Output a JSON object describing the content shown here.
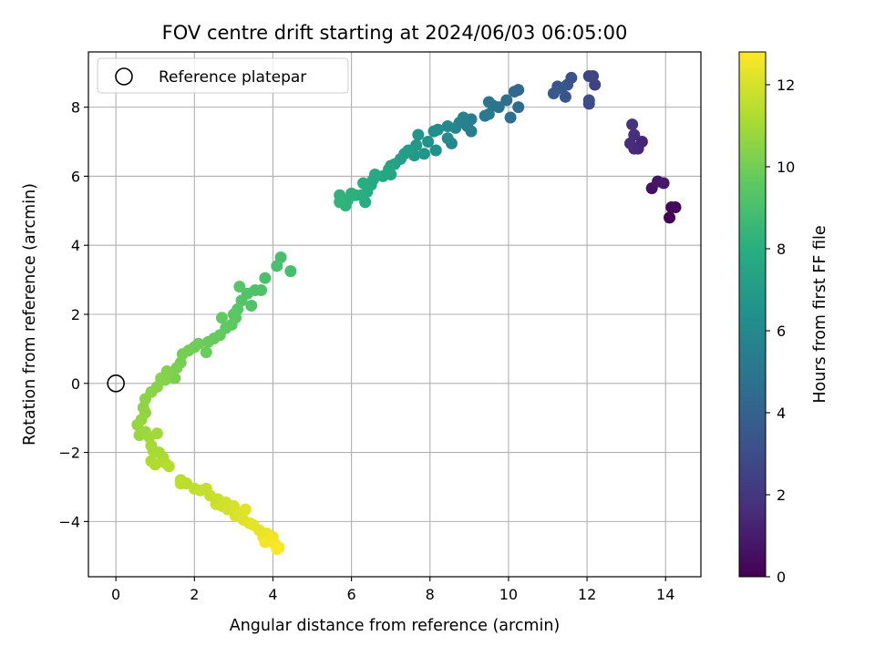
{
  "chart_data": {
    "type": "scatter",
    "title": "FOV centre drift starting at 2024/06/03 06:05:00",
    "xlabel": "Angular distance from reference (arcmin)",
    "ylabel": "Rotation from reference (arcmin)",
    "xlim": [
      -0.7,
      14.9
    ],
    "ylim": [
      -5.6,
      9.6
    ],
    "xticks": [
      0,
      2,
      4,
      6,
      8,
      10,
      12,
      14
    ],
    "yticks": [
      -4,
      -2,
      0,
      2,
      4,
      6,
      8
    ],
    "grid": true,
    "legend": {
      "placement": "top-left",
      "entries": [
        "Reference platepar"
      ]
    },
    "reference_point": {
      "x": 0,
      "y": 0,
      "label": "Reference platepar",
      "marker": "open-circle"
    },
    "colorbar": {
      "label": "Hours from first FF file",
      "colormap": "viridis",
      "range": [
        0,
        12.8
      ],
      "ticks": [
        0,
        2,
        4,
        6,
        8,
        10,
        12
      ]
    },
    "series": [
      {
        "points": [
          {
            "x": 14.1,
            "y": 4.8,
            "t": 0.1
          },
          {
            "x": 14.25,
            "y": 5.1,
            "t": 0.2
          },
          {
            "x": 14.15,
            "y": 5.1,
            "t": 0.3
          },
          {
            "x": 13.65,
            "y": 5.65,
            "t": 0.6
          },
          {
            "x": 13.8,
            "y": 5.85,
            "t": 0.8
          },
          {
            "x": 13.95,
            "y": 5.8,
            "t": 0.9
          },
          {
            "x": 13.4,
            "y": 7.0,
            "t": 1.3
          },
          {
            "x": 13.3,
            "y": 6.8,
            "t": 1.4
          },
          {
            "x": 13.2,
            "y": 6.8,
            "t": 1.5
          },
          {
            "x": 13.1,
            "y": 6.95,
            "t": 1.6
          },
          {
            "x": 13.2,
            "y": 7.2,
            "t": 1.7
          },
          {
            "x": 13.15,
            "y": 7.5,
            "t": 1.8
          },
          {
            "x": 12.2,
            "y": 8.65,
            "t": 2.5
          },
          {
            "x": 12.15,
            "y": 8.9,
            "t": 2.6
          },
          {
            "x": 12.05,
            "y": 8.9,
            "t": 2.7
          },
          {
            "x": 12.05,
            "y": 8.1,
            "t": 2.9
          },
          {
            "x": 12.05,
            "y": 8.2,
            "t": 3.0
          },
          {
            "x": 11.6,
            "y": 8.85,
            "t": 3.1
          },
          {
            "x": 11.5,
            "y": 8.65,
            "t": 3.2
          },
          {
            "x": 11.45,
            "y": 8.3,
            "t": 3.3
          },
          {
            "x": 11.35,
            "y": 8.55,
            "t": 3.4
          },
          {
            "x": 11.25,
            "y": 8.6,
            "t": 3.5
          },
          {
            "x": 11.15,
            "y": 8.4,
            "t": 3.6
          },
          {
            "x": 10.25,
            "y": 8.5,
            "t": 4.3
          },
          {
            "x": 10.15,
            "y": 8.45,
            "t": 4.4
          },
          {
            "x": 10.25,
            "y": 8.0,
            "t": 4.5
          },
          {
            "x": 10.05,
            "y": 7.7,
            "t": 4.6
          },
          {
            "x": 9.95,
            "y": 8.2,
            "t": 4.7
          },
          {
            "x": 9.75,
            "y": 8.0,
            "t": 4.8
          },
          {
            "x": 9.6,
            "y": 8.05,
            "t": 4.9
          },
          {
            "x": 9.5,
            "y": 8.15,
            "t": 5.0
          },
          {
            "x": 9.5,
            "y": 7.8,
            "t": 5.1
          },
          {
            "x": 9.4,
            "y": 7.75,
            "t": 5.2
          },
          {
            "x": 9.05,
            "y": 7.65,
            "t": 5.3
          },
          {
            "x": 9.05,
            "y": 7.3,
            "t": 5.4
          },
          {
            "x": 8.95,
            "y": 7.45,
            "t": 5.5
          },
          {
            "x": 8.85,
            "y": 7.7,
            "t": 5.6
          },
          {
            "x": 8.75,
            "y": 7.55,
            "t": 5.7
          },
          {
            "x": 8.65,
            "y": 7.4,
            "t": 5.8
          },
          {
            "x": 8.55,
            "y": 6.95,
            "t": 5.9
          },
          {
            "x": 8.45,
            "y": 7.45,
            "t": 6.0
          },
          {
            "x": 8.45,
            "y": 7.1,
            "t": 6.1
          },
          {
            "x": 8.2,
            "y": 7.35,
            "t": 6.2
          },
          {
            "x": 8.1,
            "y": 7.3,
            "t": 6.3
          },
          {
            "x": 8.15,
            "y": 6.75,
            "t": 6.4
          },
          {
            "x": 7.95,
            "y": 7.0,
            "t": 6.5
          },
          {
            "x": 7.85,
            "y": 6.65,
            "t": 6.6
          },
          {
            "x": 7.7,
            "y": 7.2,
            "t": 6.7
          },
          {
            "x": 7.65,
            "y": 6.9,
            "t": 6.8
          },
          {
            "x": 7.6,
            "y": 6.6,
            "t": 6.9
          },
          {
            "x": 7.45,
            "y": 6.75,
            "t": 7.0
          },
          {
            "x": 7.35,
            "y": 6.65,
            "t": 7.1
          },
          {
            "x": 7.25,
            "y": 6.5,
            "t": 7.2
          },
          {
            "x": 7.1,
            "y": 6.35,
            "t": 7.3
          },
          {
            "x": 7.0,
            "y": 6.3,
            "t": 7.4
          },
          {
            "x": 7.0,
            "y": 6.05,
            "t": 7.5
          },
          {
            "x": 6.95,
            "y": 6.2,
            "t": 7.55
          },
          {
            "x": 6.8,
            "y": 6.0,
            "t": 7.6
          },
          {
            "x": 6.6,
            "y": 6.05,
            "t": 7.7
          },
          {
            "x": 6.55,
            "y": 5.9,
            "t": 7.75
          },
          {
            "x": 6.5,
            "y": 5.75,
            "t": 7.8
          },
          {
            "x": 6.4,
            "y": 5.55,
            "t": 7.85
          },
          {
            "x": 6.35,
            "y": 5.25,
            "t": 7.9
          },
          {
            "x": 6.3,
            "y": 5.8,
            "t": 7.95
          },
          {
            "x": 6.25,
            "y": 5.45,
            "t": 8.0
          },
          {
            "x": 6.1,
            "y": 5.45,
            "t": 8.05
          },
          {
            "x": 6.0,
            "y": 5.5,
            "t": 8.1
          },
          {
            "x": 5.9,
            "y": 5.3,
            "t": 8.15
          },
          {
            "x": 5.85,
            "y": 5.15,
            "t": 8.2
          },
          {
            "x": 5.7,
            "y": 5.45,
            "t": 8.25
          },
          {
            "x": 5.7,
            "y": 5.25,
            "t": 8.3
          },
          {
            "x": 4.45,
            "y": 3.25,
            "t": 8.9
          },
          {
            "x": 4.2,
            "y": 3.65,
            "t": 8.95
          },
          {
            "x": 4.1,
            "y": 3.4,
            "t": 9.0
          },
          {
            "x": 3.8,
            "y": 3.05,
            "t": 9.05
          },
          {
            "x": 3.7,
            "y": 2.7,
            "t": 9.1
          },
          {
            "x": 3.55,
            "y": 2.7,
            "t": 9.15
          },
          {
            "x": 3.45,
            "y": 2.25,
            "t": 9.2
          },
          {
            "x": 3.35,
            "y": 2.6,
            "t": 9.25
          },
          {
            "x": 3.2,
            "y": 2.4,
            "t": 9.3
          },
          {
            "x": 3.15,
            "y": 2.8,
            "t": 9.35
          },
          {
            "x": 3.1,
            "y": 2.15,
            "t": 9.4
          },
          {
            "x": 3.05,
            "y": 1.9,
            "t": 9.45
          },
          {
            "x": 3.0,
            "y": 2.0,
            "t": 9.5
          },
          {
            "x": 2.95,
            "y": 1.7,
            "t": 9.55
          },
          {
            "x": 2.8,
            "y": 1.6,
            "t": 9.6
          },
          {
            "x": 2.7,
            "y": 1.9,
            "t": 9.65
          },
          {
            "x": 2.65,
            "y": 1.4,
            "t": 9.7
          },
          {
            "x": 2.5,
            "y": 1.3,
            "t": 9.75
          },
          {
            "x": 2.35,
            "y": 1.2,
            "t": 9.8
          },
          {
            "x": 2.3,
            "y": 0.9,
            "t": 9.85
          },
          {
            "x": 2.1,
            "y": 1.15,
            "t": 9.9
          },
          {
            "x": 2.0,
            "y": 1.05,
            "t": 9.95
          },
          {
            "x": 1.85,
            "y": 0.95,
            "t": 10.0
          },
          {
            "x": 1.7,
            "y": 0.85,
            "t": 10.05
          },
          {
            "x": 1.65,
            "y": 0.6,
            "t": 10.1
          },
          {
            "x": 1.55,
            "y": 0.45,
            "t": 10.15
          },
          {
            "x": 1.5,
            "y": 0.15,
            "t": 10.2
          },
          {
            "x": 1.45,
            "y": 0.3,
            "t": 10.25
          },
          {
            "x": 1.3,
            "y": 0.35,
            "t": 10.3
          },
          {
            "x": 1.25,
            "y": 0.1,
            "t": 10.35
          },
          {
            "x": 1.15,
            "y": 0.15,
            "t": 10.4
          },
          {
            "x": 1.05,
            "y": -0.1,
            "t": 10.45
          },
          {
            "x": 0.9,
            "y": -0.25,
            "t": 10.5
          },
          {
            "x": 0.75,
            "y": -0.45,
            "t": 10.55
          },
          {
            "x": 0.7,
            "y": -0.7,
            "t": 10.6
          },
          {
            "x": 0.75,
            "y": -0.85,
            "t": 10.65
          },
          {
            "x": 0.65,
            "y": -1.05,
            "t": 10.7
          },
          {
            "x": 0.55,
            "y": -1.2,
            "t": 10.75
          },
          {
            "x": 0.6,
            "y": -1.5,
            "t": 10.8
          },
          {
            "x": 0.75,
            "y": -1.4,
            "t": 10.85
          },
          {
            "x": 0.85,
            "y": -1.55,
            "t": 10.9
          },
          {
            "x": 1.05,
            "y": -1.45,
            "t": 10.95
          },
          {
            "x": 0.9,
            "y": -1.8,
            "t": 11.0
          },
          {
            "x": 0.95,
            "y": -1.95,
            "t": 11.05
          },
          {
            "x": 1.1,
            "y": -2.0,
            "t": 11.1
          },
          {
            "x": 1.2,
            "y": -2.15,
            "t": 11.15
          },
          {
            "x": 0.9,
            "y": -2.25,
            "t": 11.2
          },
          {
            "x": 1.0,
            "y": -2.35,
            "t": 11.25
          },
          {
            "x": 1.25,
            "y": -2.3,
            "t": 11.3
          },
          {
            "x": 1.35,
            "y": -2.4,
            "t": 11.35
          },
          {
            "x": 1.65,
            "y": -2.8,
            "t": 11.4
          },
          {
            "x": 1.8,
            "y": -2.9,
            "t": 11.45
          },
          {
            "x": 1.65,
            "y": -2.9,
            "t": 11.5
          },
          {
            "x": 2.0,
            "y": -3.05,
            "t": 11.55
          },
          {
            "x": 2.15,
            "y": -3.1,
            "t": 11.6
          },
          {
            "x": 2.3,
            "y": -3.05,
            "t": 11.65
          },
          {
            "x": 2.4,
            "y": -3.25,
            "t": 11.7
          },
          {
            "x": 2.6,
            "y": -3.35,
            "t": 11.75
          },
          {
            "x": 2.55,
            "y": -3.5,
            "t": 11.8
          },
          {
            "x": 2.7,
            "y": -3.55,
            "t": 11.85
          },
          {
            "x": 2.8,
            "y": -3.45,
            "t": 11.9
          },
          {
            "x": 2.85,
            "y": -3.65,
            "t": 11.95
          },
          {
            "x": 3.0,
            "y": -3.55,
            "t": 12.0
          },
          {
            "x": 3.05,
            "y": -3.85,
            "t": 12.05
          },
          {
            "x": 3.15,
            "y": -3.75,
            "t": 12.1
          },
          {
            "x": 3.25,
            "y": -3.95,
            "t": 12.15
          },
          {
            "x": 3.3,
            "y": -3.65,
            "t": 12.2
          },
          {
            "x": 3.4,
            "y": -4.05,
            "t": 12.25
          },
          {
            "x": 3.5,
            "y": -4.1,
            "t": 12.3
          },
          {
            "x": 3.65,
            "y": -4.25,
            "t": 12.35
          },
          {
            "x": 3.75,
            "y": -4.45,
            "t": 12.4
          },
          {
            "x": 3.85,
            "y": -4.35,
            "t": 12.45
          },
          {
            "x": 3.95,
            "y": -4.55,
            "t": 12.5
          },
          {
            "x": 4.0,
            "y": -4.45,
            "t": 12.55
          },
          {
            "x": 3.8,
            "y": -4.6,
            "t": 12.6
          },
          {
            "x": 4.05,
            "y": -4.65,
            "t": 12.65
          },
          {
            "x": 4.15,
            "y": -4.75,
            "t": 12.7
          },
          {
            "x": 4.1,
            "y": -4.8,
            "t": 12.75
          }
        ]
      }
    ]
  }
}
